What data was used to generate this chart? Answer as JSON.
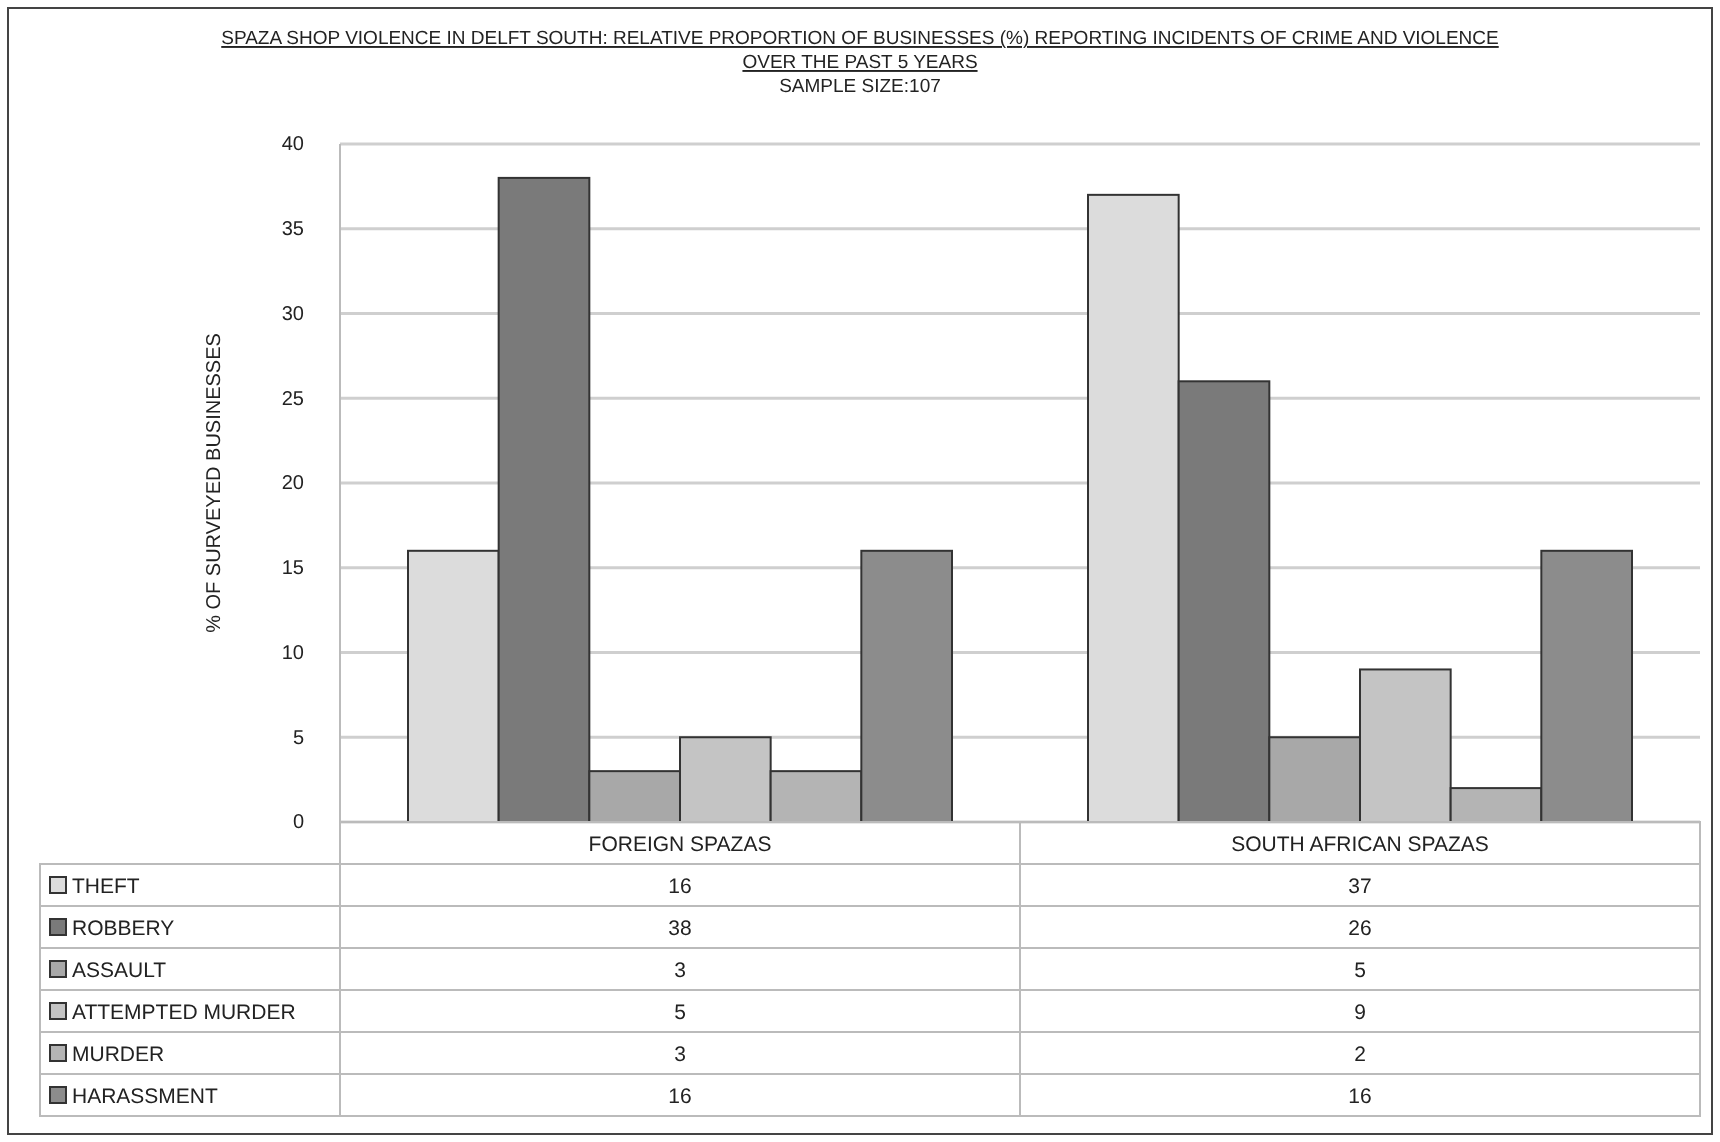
{
  "chart_data": {
    "type": "bar",
    "title": "SPAZA SHOP VIOLENCE IN DELFT SOUTH: RELATIVE PROPORTION OF BUSINESSES (%) REPORTING INCIDENTS OF CRIME AND VIOLENCE OVER THE PAST 5 YEARS",
    "subtitle": "SAMPLE SIZE:107",
    "ylabel": "% OF SURVEYED BUSINESSES",
    "categories": [
      "FOREIGN SPAZAS",
      "SOUTH AFRICAN SPAZAS"
    ],
    "series": [
      {
        "name": "THEFT",
        "color": "#dcdcdc",
        "values": [
          16,
          37
        ]
      },
      {
        "name": "ROBBERY",
        "color": "#7a7a7a",
        "values": [
          38,
          26
        ]
      },
      {
        "name": "ASSAULT",
        "color": "#a8a8a8",
        "values": [
          3,
          5
        ]
      },
      {
        "name": "ATTEMPTED MURDER",
        "color": "#c4c4c4",
        "values": [
          5,
          9
        ]
      },
      {
        "name": "MURDER",
        "color": "#b4b4b4",
        "values": [
          3,
          2
        ]
      },
      {
        "name": "HARASSMENT",
        "color": "#8c8c8c",
        "values": [
          16,
          16
        ]
      }
    ],
    "ylim": [
      0,
      40
    ],
    "yticks": [
      0,
      5,
      10,
      15,
      20,
      25,
      30,
      35,
      40
    ],
    "grid": "y",
    "legend": "bottom",
    "data_labels": true
  }
}
